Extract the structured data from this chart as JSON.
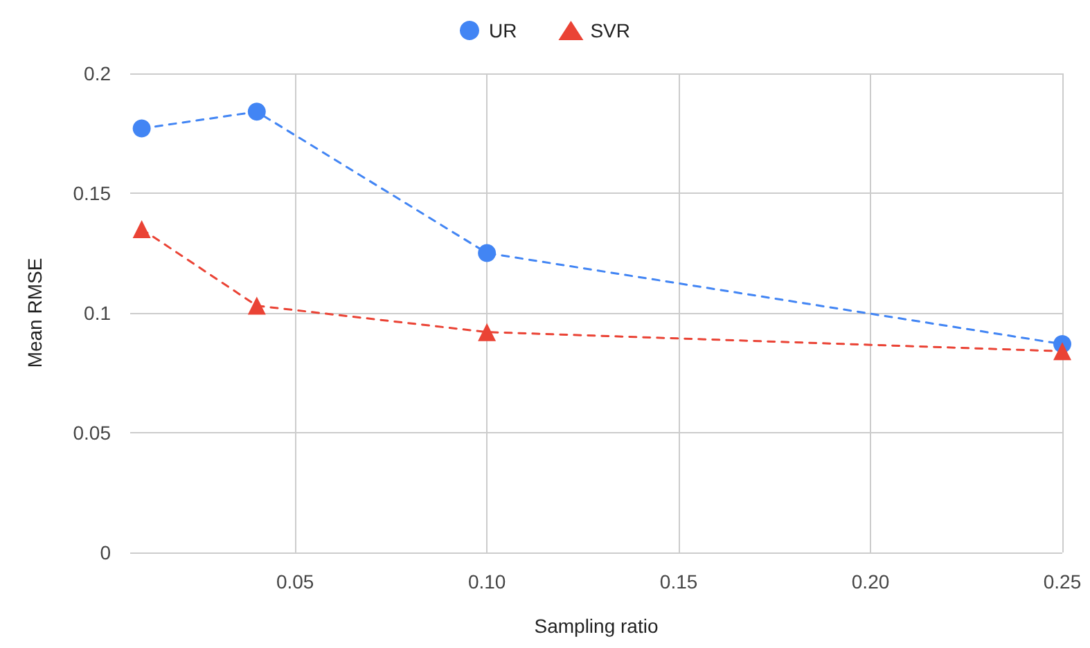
{
  "chart_data": {
    "type": "line",
    "xlabel": "Sampling ratio",
    "ylabel": "Mean RMSE",
    "x": [
      0.01,
      0.04,
      0.1,
      0.25
    ],
    "series": [
      {
        "name": "UR",
        "color": "#4285f4",
        "marker": "circle",
        "values": [
          0.177,
          0.184,
          0.125,
          0.087
        ]
      },
      {
        "name": "SVR",
        "color": "#ea4335",
        "marker": "triangle",
        "values": [
          0.135,
          0.103,
          0.092,
          0.084
        ]
      }
    ],
    "xlim": [
      0.007,
      0.25
    ],
    "xticks": [
      {
        "value": 0.05,
        "label": "0.05"
      },
      {
        "value": 0.1,
        "label": "0.10"
      },
      {
        "value": 0.15,
        "label": "0.15"
      },
      {
        "value": 0.2,
        "label": "0.20"
      },
      {
        "value": 0.25,
        "label": "0.25"
      }
    ],
    "ylim": [
      0,
      0.2
    ],
    "yticks": [
      0,
      0.05,
      0.1,
      0.15,
      0.2
    ],
    "grid": true,
    "legend": "top",
    "line_style": "dashed"
  }
}
